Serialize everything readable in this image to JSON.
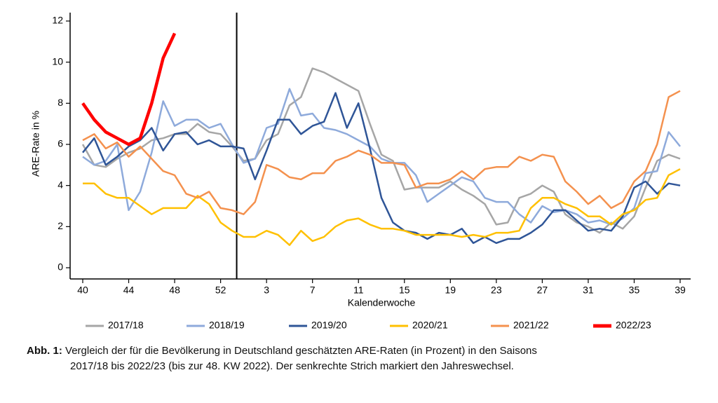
{
  "chart_data": {
    "type": "line",
    "y_label": "ARE-Rate in %",
    "x_label": "Kalenderwoche",
    "categories": [
      "40",
      null,
      null,
      null,
      "44",
      null,
      null,
      null,
      "48",
      null,
      null,
      null,
      "52",
      null,
      null,
      null,
      "3",
      null,
      null,
      null,
      "7",
      null,
      null,
      null,
      "11",
      null,
      null,
      null,
      "15",
      null,
      null,
      null,
      "19",
      null,
      null,
      null,
      "23",
      null,
      null,
      null,
      "27",
      null,
      null,
      null,
      "31",
      null,
      null,
      null,
      "35",
      null,
      null,
      null,
      "39"
    ],
    "ylim": [
      0,
      12
    ],
    "yticks": [
      0,
      2,
      4,
      6,
      8,
      10,
      12
    ],
    "grid": false,
    "legend": "bottom",
    "series": [
      {
        "name": "2017/18",
        "color": "#a6a6a6",
        "values": [
          6.0,
          5.0,
          4.9,
          5.3,
          5.6,
          5.8,
          6.2,
          6.3,
          6.5,
          6.5,
          7.0,
          6.6,
          6.5,
          5.9,
          5.2,
          5.3,
          6.2,
          6.5,
          7.9,
          8.3,
          9.7,
          9.5,
          9.2,
          8.9,
          8.6,
          7.0,
          5.5,
          5.2,
          3.8,
          3.9,
          3.9,
          3.9,
          4.2,
          3.8,
          3.5,
          3.1,
          2.1,
          2.2,
          3.4,
          3.6,
          4.0,
          3.7,
          2.6,
          2.2,
          2.0,
          1.7,
          2.2,
          1.9,
          2.5,
          3.9,
          5.2,
          5.5,
          5.3
        ]
      },
      {
        "name": "2018/19",
        "color": "#8eaadb",
        "values": [
          5.4,
          5.0,
          5.2,
          6.0,
          2.8,
          3.7,
          5.6,
          8.1,
          6.9,
          7.2,
          7.2,
          6.8,
          7.0,
          6.0,
          5.1,
          5.3,
          6.8,
          7.0,
          8.7,
          7.4,
          7.5,
          6.8,
          6.7,
          6.5,
          6.2,
          5.9,
          5.3,
          5.1,
          5.1,
          4.5,
          3.2,
          3.6,
          4.0,
          4.4,
          4.2,
          3.4,
          3.2,
          3.2,
          2.6,
          2.2,
          3.0,
          2.7,
          2.8,
          2.6,
          2.2,
          2.3,
          2.1,
          2.4,
          2.9,
          4.6,
          4.7,
          6.6,
          5.9
        ]
      },
      {
        "name": "2019/20",
        "color": "#2f5597",
        "values": [
          5.6,
          6.3,
          5.0,
          5.4,
          5.9,
          6.2,
          6.8,
          5.7,
          6.5,
          6.6,
          6.0,
          6.2,
          5.9,
          5.9,
          5.8,
          4.3,
          5.7,
          7.2,
          7.2,
          6.5,
          6.9,
          7.1,
          8.5,
          6.8,
          8.0,
          5.8,
          3.4,
          2.2,
          1.8,
          1.7,
          1.4,
          1.7,
          1.6,
          1.9,
          1.2,
          1.5,
          1.2,
          1.4,
          1.4,
          1.7,
          2.1,
          2.8,
          2.8,
          2.3,
          1.8,
          1.9,
          1.8,
          2.5,
          3.9,
          4.2,
          3.6,
          4.1,
          4.0
        ]
      },
      {
        "name": "2020/21",
        "color": "#ffc000",
        "values": [
          4.1,
          4.1,
          3.6,
          3.4,
          3.4,
          3.0,
          2.6,
          2.9,
          2.9,
          2.9,
          3.5,
          3.1,
          2.2,
          1.8,
          1.5,
          1.5,
          1.8,
          1.6,
          1.1,
          1.8,
          1.3,
          1.5,
          2.0,
          2.3,
          2.4,
          2.1,
          1.9,
          1.9,
          1.8,
          1.6,
          1.6,
          1.6,
          1.6,
          1.5,
          1.6,
          1.5,
          1.7,
          1.7,
          1.8,
          2.9,
          3.4,
          3.4,
          3.1,
          2.9,
          2.5,
          2.5,
          2.1,
          2.6,
          2.8,
          3.3,
          3.4,
          4.5,
          4.8
        ]
      },
      {
        "name": "2021/22",
        "color": "#f4914e",
        "values": [
          6.2,
          6.5,
          5.8,
          6.1,
          5.4,
          5.9,
          5.3,
          4.7,
          4.5,
          3.6,
          3.4,
          3.7,
          2.9,
          2.8,
          2.6,
          3.2,
          5.0,
          4.8,
          4.4,
          4.3,
          4.6,
          4.6,
          5.2,
          5.4,
          5.7,
          5.5,
          5.1,
          5.1,
          5.0,
          3.9,
          4.1,
          4.1,
          4.3,
          4.7,
          4.3,
          4.8,
          4.9,
          4.9,
          5.4,
          5.2,
          5.5,
          5.4,
          4.2,
          3.7,
          3.1,
          3.5,
          2.9,
          3.2,
          4.2,
          4.7,
          6.0,
          8.3,
          8.6
        ]
      },
      {
        "name": "2022/23",
        "color": "#ff0000",
        "values": [
          8.0,
          7.2,
          6.6,
          6.3,
          6.0,
          6.3,
          8.0,
          10.2,
          11.4,
          null,
          null,
          null,
          null,
          null,
          null,
          null,
          null,
          null,
          null,
          null,
          null,
          null,
          null,
          null,
          null,
          null,
          null,
          null,
          null,
          null,
          null,
          null,
          null,
          null,
          null,
          null,
          null,
          null,
          null,
          null,
          null,
          null,
          null,
          null,
          null,
          null,
          null,
          null,
          null,
          null,
          null,
          null,
          null
        ]
      }
    ]
  },
  "caption": {
    "label": "Abb. 1:",
    "line1": "Vergleich der für die Bevölkerung in Deutschland geschätzten ARE-Raten (in Prozent) in den Saisons",
    "line2": "2017/18 bis 2022/23 (bis zur 48. KW 2022). Der senkrechte Strich markiert den Jahreswechsel."
  }
}
